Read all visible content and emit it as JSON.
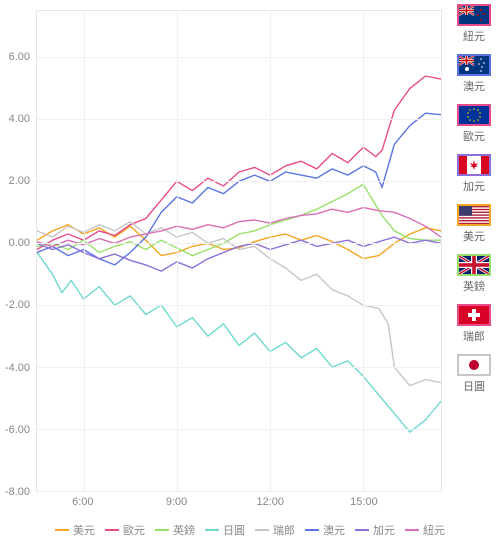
{
  "chart": {
    "type": "line",
    "background_color": "#ffffff",
    "grid_color": "#efefef",
    "axis_border_color": "#e5e5e5",
    "label_color": "#888888",
    "label_fontsize": 11,
    "ylim": [
      -8,
      7.5
    ],
    "ytick_step": 2,
    "yticks": [
      -8,
      -6,
      -4,
      -2,
      0,
      2,
      4,
      6
    ],
    "ytick_labels": [
      "-8.00",
      "-6.00",
      "-4.00",
      "-2.00",
      "0.00",
      "2.00",
      "4.00",
      "6.00"
    ],
    "xlim": [
      4.5,
      17.5
    ],
    "xticks": [
      6,
      9,
      12,
      15
    ],
    "xtick_labels": [
      "6:00",
      "9:00",
      "12:00",
      "15:00"
    ],
    "line_width": 1.4,
    "series": [
      {
        "id": "usd",
        "label": "美元",
        "color": "#f5a623",
        "data": [
          [
            4.5,
            0.1
          ],
          [
            5,
            0.4
          ],
          [
            5.5,
            0.6
          ],
          [
            6,
            0.3
          ],
          [
            6.5,
            0.5
          ],
          [
            7,
            0.2
          ],
          [
            7.5,
            0.55
          ],
          [
            8,
            0.1
          ],
          [
            8.5,
            -0.4
          ],
          [
            9,
            -0.3
          ],
          [
            9.5,
            -0.1
          ],
          [
            10,
            0.0
          ],
          [
            10.5,
            -0.2
          ],
          [
            11,
            -0.15
          ],
          [
            11.5,
            0.05
          ],
          [
            12,
            0.2
          ],
          [
            12.5,
            0.3
          ],
          [
            13,
            0.1
          ],
          [
            13.5,
            0.25
          ],
          [
            14,
            0.05
          ],
          [
            14.5,
            -0.2
          ],
          [
            15,
            -0.5
          ],
          [
            15.5,
            -0.4
          ],
          [
            16,
            0.0
          ],
          [
            16.5,
            0.3
          ],
          [
            17,
            0.5
          ],
          [
            17.5,
            0.4
          ]
        ]
      },
      {
        "id": "eur",
        "label": "歐元",
        "color": "#e84c8b",
        "data": [
          [
            4.5,
            -0.2
          ],
          [
            5,
            0.1
          ],
          [
            5.5,
            0.3
          ],
          [
            6,
            0.1
          ],
          [
            6.5,
            0.4
          ],
          [
            7,
            0.25
          ],
          [
            7.5,
            0.6
          ],
          [
            8,
            0.8
          ],
          [
            8.5,
            1.4
          ],
          [
            9,
            2.0
          ],
          [
            9.5,
            1.7
          ],
          [
            10,
            2.1
          ],
          [
            10.5,
            1.85
          ],
          [
            11,
            2.3
          ],
          [
            11.5,
            2.45
          ],
          [
            12,
            2.2
          ],
          [
            12.5,
            2.5
          ],
          [
            13,
            2.65
          ],
          [
            13.5,
            2.4
          ],
          [
            14,
            2.9
          ],
          [
            14.5,
            2.6
          ],
          [
            15,
            3.1
          ],
          [
            15.4,
            2.8
          ],
          [
            15.6,
            3.0
          ],
          [
            16,
            4.3
          ],
          [
            16.5,
            5.0
          ],
          [
            17,
            5.4
          ],
          [
            17.5,
            5.3
          ]
        ]
      },
      {
        "id": "gbp",
        "label": "英鎊",
        "color": "#97e06a",
        "data": [
          [
            4.5,
            -0.1
          ],
          [
            5,
            0.0
          ],
          [
            5.5,
            -0.2
          ],
          [
            6,
            0.1
          ],
          [
            6.5,
            -0.3
          ],
          [
            7,
            -0.1
          ],
          [
            7.5,
            0.05
          ],
          [
            8,
            -0.2
          ],
          [
            8.5,
            0.1
          ],
          [
            9,
            -0.15
          ],
          [
            9.5,
            -0.4
          ],
          [
            10,
            -0.2
          ],
          [
            10.5,
            0.0
          ],
          [
            11,
            0.3
          ],
          [
            11.5,
            0.4
          ],
          [
            12,
            0.6
          ],
          [
            12.5,
            0.75
          ],
          [
            13,
            0.9
          ],
          [
            13.5,
            1.1
          ],
          [
            14,
            1.35
          ],
          [
            14.5,
            1.6
          ],
          [
            15,
            1.9
          ],
          [
            15.3,
            1.4
          ],
          [
            15.6,
            0.9
          ],
          [
            16,
            0.4
          ],
          [
            16.5,
            0.15
          ],
          [
            17,
            0.1
          ],
          [
            17.5,
            0.1
          ]
        ]
      },
      {
        "id": "jpy",
        "label": "日圓",
        "color": "#6fd9d0",
        "data": [
          [
            4.5,
            -0.3
          ],
          [
            5,
            -1.0
          ],
          [
            5.3,
            -1.6
          ],
          [
            5.6,
            -1.2
          ],
          [
            6,
            -1.8
          ],
          [
            6.5,
            -1.4
          ],
          [
            7,
            -2.0
          ],
          [
            7.5,
            -1.7
          ],
          [
            8,
            -2.3
          ],
          [
            8.5,
            -2.0
          ],
          [
            9,
            -2.7
          ],
          [
            9.5,
            -2.4
          ],
          [
            10,
            -3.0
          ],
          [
            10.5,
            -2.6
          ],
          [
            11,
            -3.3
          ],
          [
            11.5,
            -2.9
          ],
          [
            12,
            -3.5
          ],
          [
            12.5,
            -3.2
          ],
          [
            13,
            -3.7
          ],
          [
            13.5,
            -3.4
          ],
          [
            14,
            -4.0
          ],
          [
            14.5,
            -3.8
          ],
          [
            15,
            -4.3
          ],
          [
            15.5,
            -4.9
          ],
          [
            16,
            -5.5
          ],
          [
            16.5,
            -6.1
          ],
          [
            17,
            -5.7
          ],
          [
            17.5,
            -5.1
          ]
        ]
      },
      {
        "id": "chf",
        "label": "瑞郎",
        "color": "#c7c7c7",
        "data": [
          [
            4.5,
            0.4
          ],
          [
            5,
            0.2
          ],
          [
            5.5,
            0.55
          ],
          [
            6,
            0.35
          ],
          [
            6.5,
            0.6
          ],
          [
            7,
            0.4
          ],
          [
            7.5,
            0.7
          ],
          [
            8,
            0.3
          ],
          [
            8.5,
            0.5
          ],
          [
            9,
            0.2
          ],
          [
            9.5,
            0.35
          ],
          [
            10,
            0.0
          ],
          [
            10.5,
            0.15
          ],
          [
            11,
            -0.2
          ],
          [
            11.5,
            -0.1
          ],
          [
            12,
            -0.5
          ],
          [
            12.5,
            -0.8
          ],
          [
            13,
            -1.2
          ],
          [
            13.5,
            -1.0
          ],
          [
            14,
            -1.5
          ],
          [
            14.5,
            -1.7
          ],
          [
            15,
            -2.0
          ],
          [
            15.5,
            -2.1
          ],
          [
            15.8,
            -2.6
          ],
          [
            16,
            -4.0
          ],
          [
            16.5,
            -4.6
          ],
          [
            17,
            -4.4
          ],
          [
            17.5,
            -4.5
          ]
        ]
      },
      {
        "id": "aud",
        "label": "澳元",
        "color": "#5b74e0",
        "data": [
          [
            4.5,
            -0.3
          ],
          [
            5,
            -0.1
          ],
          [
            5.5,
            -0.4
          ],
          [
            6,
            -0.2
          ],
          [
            6.5,
            -0.5
          ],
          [
            7,
            -0.7
          ],
          [
            7.5,
            -0.3
          ],
          [
            8,
            0.2
          ],
          [
            8.5,
            1.0
          ],
          [
            9,
            1.5
          ],
          [
            9.5,
            1.3
          ],
          [
            10,
            1.8
          ],
          [
            10.5,
            1.6
          ],
          [
            11,
            2.0
          ],
          [
            11.5,
            2.2
          ],
          [
            12,
            2.0
          ],
          [
            12.5,
            2.3
          ],
          [
            13,
            2.2
          ],
          [
            13.5,
            2.1
          ],
          [
            14,
            2.4
          ],
          [
            14.5,
            2.2
          ],
          [
            15,
            2.5
          ],
          [
            15.4,
            2.3
          ],
          [
            15.6,
            1.8
          ],
          [
            16,
            3.2
          ],
          [
            16.5,
            3.8
          ],
          [
            17,
            4.2
          ],
          [
            17.5,
            4.15
          ]
        ]
      },
      {
        "id": "cad",
        "label": "加元",
        "color": "#8c6fd9",
        "data": [
          [
            4.5,
            0.0
          ],
          [
            5,
            -0.2
          ],
          [
            5.5,
            -0.05
          ],
          [
            6,
            -0.3
          ],
          [
            6.5,
            -0.5
          ],
          [
            7,
            -0.35
          ],
          [
            7.5,
            -0.55
          ],
          [
            8,
            -0.7
          ],
          [
            8.5,
            -0.9
          ],
          [
            9,
            -0.6
          ],
          [
            9.5,
            -0.8
          ],
          [
            10,
            -0.5
          ],
          [
            10.5,
            -0.3
          ],
          [
            11,
            -0.1
          ],
          [
            11.5,
            0.0
          ],
          [
            12,
            -0.2
          ],
          [
            12.5,
            -0.05
          ],
          [
            13,
            0.1
          ],
          [
            13.5,
            -0.1
          ],
          [
            14,
            0.0
          ],
          [
            14.5,
            0.1
          ],
          [
            15,
            -0.1
          ],
          [
            15.5,
            0.05
          ],
          [
            16,
            0.2
          ],
          [
            16.5,
            0.0
          ],
          [
            17,
            0.1
          ],
          [
            17.5,
            0.0
          ]
        ]
      },
      {
        "id": "nzd",
        "label": "紐元",
        "color": "#d96fb7",
        "data": [
          [
            4.5,
            0.05
          ],
          [
            5,
            -0.1
          ],
          [
            5.5,
            0.1
          ],
          [
            6,
            -0.05
          ],
          [
            6.5,
            0.15
          ],
          [
            7,
            0.0
          ],
          [
            7.5,
            0.2
          ],
          [
            8,
            0.3
          ],
          [
            8.5,
            0.4
          ],
          [
            9,
            0.55
          ],
          [
            9.5,
            0.45
          ],
          [
            10,
            0.6
          ],
          [
            10.5,
            0.5
          ],
          [
            11,
            0.7
          ],
          [
            11.5,
            0.75
          ],
          [
            12,
            0.65
          ],
          [
            12.5,
            0.8
          ],
          [
            13,
            0.9
          ],
          [
            13.5,
            0.95
          ],
          [
            14,
            1.1
          ],
          [
            14.5,
            1.0
          ],
          [
            15,
            1.15
          ],
          [
            15.5,
            1.05
          ],
          [
            16,
            1.0
          ],
          [
            16.5,
            0.8
          ],
          [
            17,
            0.55
          ],
          [
            17.5,
            0.2
          ]
        ]
      }
    ],
    "legend_order": [
      "usd",
      "eur",
      "gbp",
      "jpy",
      "chf",
      "aud",
      "cad",
      "nzd"
    ]
  },
  "side_flags": [
    {
      "id": "nzd",
      "label": "紐元",
      "border": "#e84c8b"
    },
    {
      "id": "aud",
      "label": "澳元",
      "border": "#5b74e0"
    },
    {
      "id": "eur",
      "label": "歐元",
      "border": "#e84c8b"
    },
    {
      "id": "cad",
      "label": "加元",
      "border": "#8c6fd9"
    },
    {
      "id": "usd",
      "label": "美元",
      "border": "#f5a623"
    },
    {
      "id": "gbp",
      "label": "英鎊",
      "border": "#97e06a"
    },
    {
      "id": "chf",
      "label": "瑞郎",
      "border": "#e84c8b"
    },
    {
      "id": "jpy",
      "label": "日圓",
      "border": "#c7c7c7"
    }
  ],
  "flag_svgs": {
    "nzd": "<rect width='30' height='18' fill='#003580'/><rect width='15' height='9' fill='#003580'/><path d='M0 0L15 9M15 0L0 9' stroke='#fff' stroke-width='2'/><path d='M0 0L15 9M15 0L0 9' stroke='#c00' stroke-width='1'/><rect x='6' width='3' height='9' fill='#fff'/><rect y='3' width='15' height='3' fill='#fff'/><rect x='6.7' width='1.6' height='9' fill='#c00'/><rect y='3.7' width='15' height='1.6' fill='#c00'/><g fill='#c00'><circle cx='22' cy='4' r='1'/><circle cx='25' cy='8' r='1'/><circle cx='19' cy='9' r='1'/><circle cx='22' cy='14' r='1'/></g>",
    "aud": "<rect width='30' height='18' fill='#003580'/><path d='M0 0L15 9M15 0L0 9' stroke='#fff' stroke-width='2'/><path d='M0 0L15 9M15 0L0 9' stroke='#c00' stroke-width='1'/><rect x='6' width='3' height='9' fill='#fff'/><rect y='3' width='15' height='3' fill='#fff'/><rect x='6.7' width='1.6' height='9' fill='#c00'/><rect y='3.7' width='15' height='1.6' fill='#c00'/><g fill='#fff'><circle cx='8' cy='13' r='2'/><circle cx='22' cy='3' r='0.8'/><circle cx='25' cy='7' r='0.8'/><circle cx='20' cy='8' r='0.8'/><circle cx='23' cy='11' r='0.8'/><circle cx='22' cy='15' r='0.8'/></g>",
    "eur": "<rect width='30' height='18' fill='#003399'/><g fill='#ffcc00'><circle cx='15' cy='3' r='0.8'/><circle cx='19' cy='4' r='0.8'/><circle cx='21' cy='7' r='0.8'/><circle cx='21' cy='11' r='0.8'/><circle cx='19' cy='14' r='0.8'/><circle cx='15' cy='15' r='0.8'/><circle cx='11' cy='14' r='0.8'/><circle cx='9' cy='11' r='0.8'/><circle cx='9' cy='7' r='0.8'/><circle cx='11' cy='4' r='0.8'/></g>",
    "cad": "<rect width='30' height='18' fill='#fff'/><rect width='8' height='18' fill='#d80621'/><rect x='22' width='8' height='18' fill='#d80621'/><path d='M15 4L16 8L19 7L17 10L19 11L16 11L15 14L14 11L11 11L13 10L11 7L14 8Z' fill='#d80621'/>",
    "usd": "<rect width='30' height='18' fill='#b22234'/><g fill='#fff'><rect y='1.4' width='30' height='1.4'/><rect y='4.2' width='30' height='1.4'/><rect y='7' width='30' height='1.4'/><rect y='9.8' width='30' height='1.4'/><rect y='12.6' width='30' height='1.4'/><rect y='15.4' width='30' height='1.4'/></g><rect width='13' height='9.7' fill='#3c3b6e'/>",
    "gbp": "<rect width='30' height='18' fill='#012169'/><path d='M0 0L30 18M30 0L0 18' stroke='#fff' stroke-width='3'/><path d='M0 0L30 18M30 0L0 18' stroke='#c8102e' stroke-width='1.5'/><rect x='12' width='6' height='18' fill='#fff'/><rect y='6' width='30' height='6' fill='#fff'/><rect x='13.2' width='3.6' height='18' fill='#c8102e'/><rect y='7.2' width='30' height='3.6' fill='#c8102e'/>",
    "chf": "<rect width='30' height='18' fill='#d80027'/><rect x='13' y='3' width='4' height='12' fill='#fff'/><rect x='9' y='7' width='12' height='4' fill='#fff'/>",
    "jpy": "<rect width='30' height='18' fill='#fff'/><circle cx='15' cy='9' r='5' fill='#bc002d'/>"
  }
}
